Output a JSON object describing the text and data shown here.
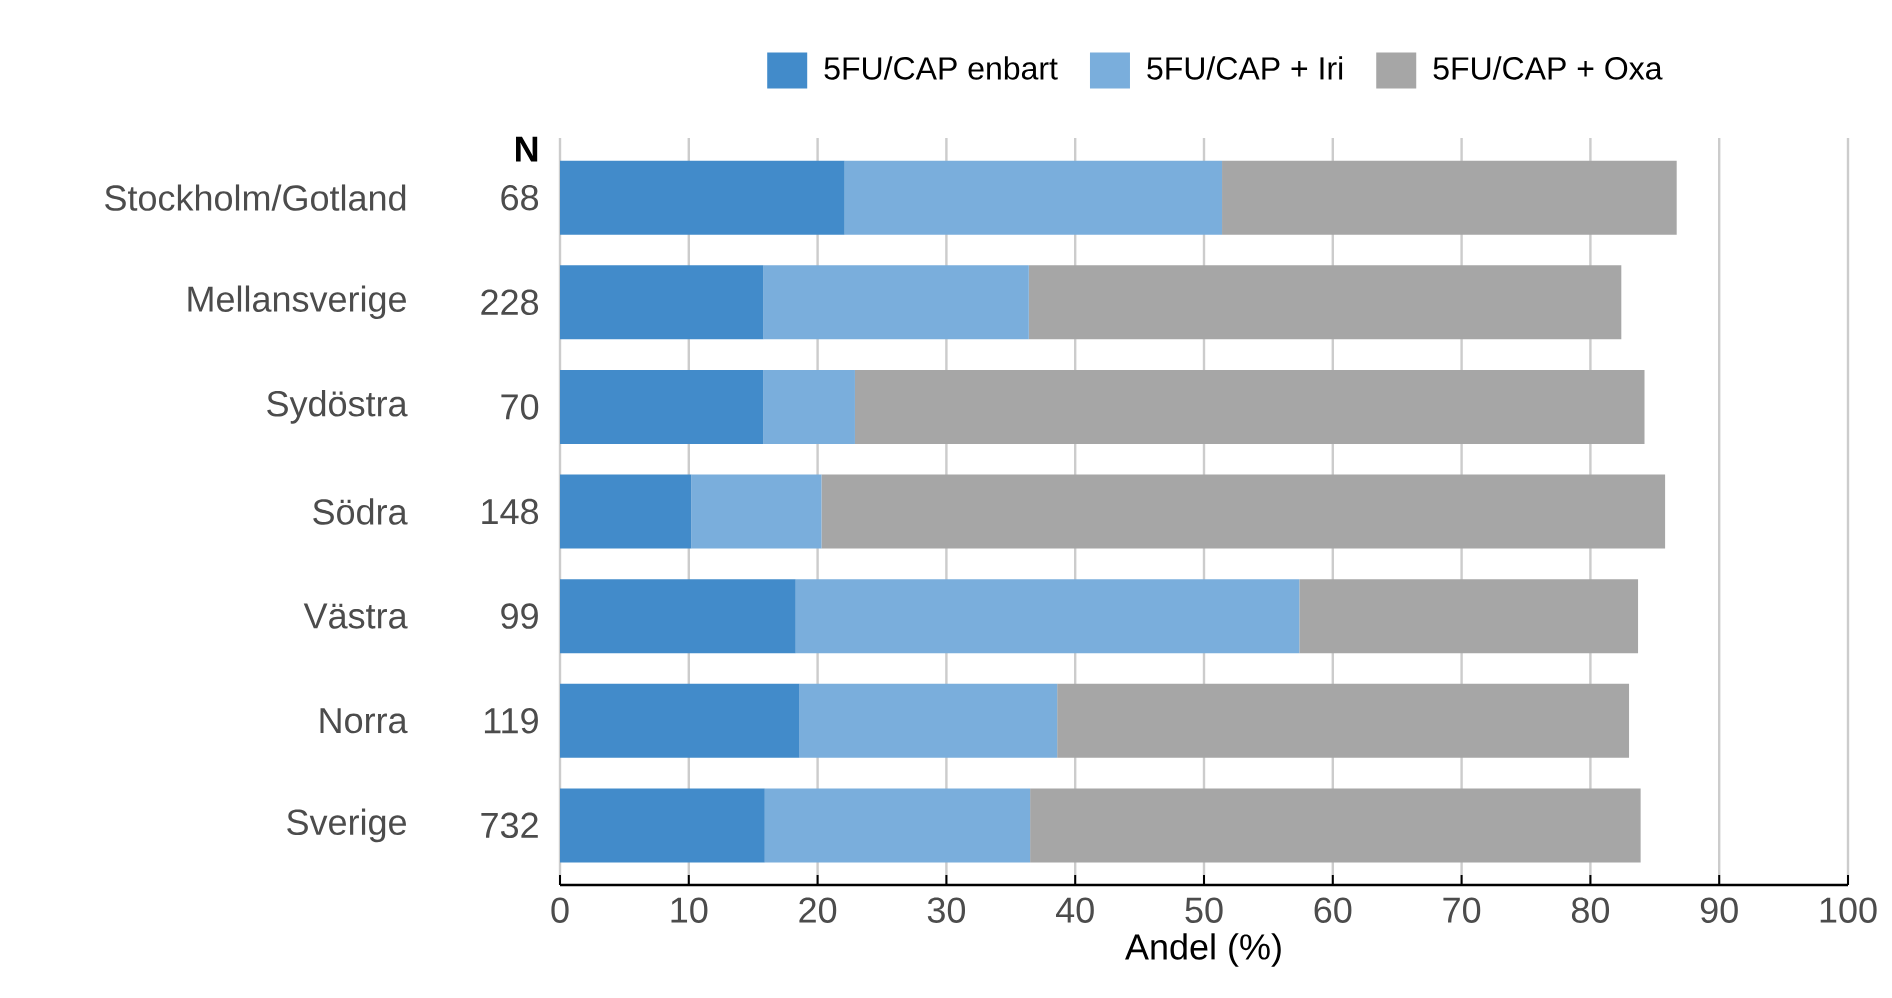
{
  "chart_data": {
    "type": "bar",
    "orientation": "horizontal",
    "stacked": true,
    "xlabel": "Andel (%)",
    "categories": [
      "Stockholm/Gotland",
      "Mellansverige",
      "Sydöstra",
      "Södra",
      "Västra",
      "Norra",
      "Sverige"
    ],
    "series": [
      {
        "name": "5FU/CAP enbart",
        "color": "#428bca",
        "values": [
          22.1,
          15.8,
          15.8,
          10.2,
          18.3,
          18.6,
          15.9
        ]
      },
      {
        "name": "5FU/CAP + Iri",
        "color": "#7aaedc",
        "values": [
          29.3,
          20.6,
          7.1,
          10.1,
          39.1,
          20.0,
          20.6
        ]
      },
      {
        "name": "5FU/CAP + Oxa",
        "color": "#a6a6a6",
        "values": [
          35.3,
          46.0,
          61.3,
          65.5,
          26.3,
          44.4,
          47.4
        ]
      }
    ],
    "annotations": [
      "N",
      "68",
      "228",
      "70",
      "148",
      "99",
      "119",
      "732"
    ],
    "xlim": [
      0,
      100
    ],
    "xticks": [
      0,
      10,
      20,
      30,
      40,
      50,
      60,
      70,
      80,
      90,
      100
    ],
    "grid": "x",
    "legend": "top"
  }
}
